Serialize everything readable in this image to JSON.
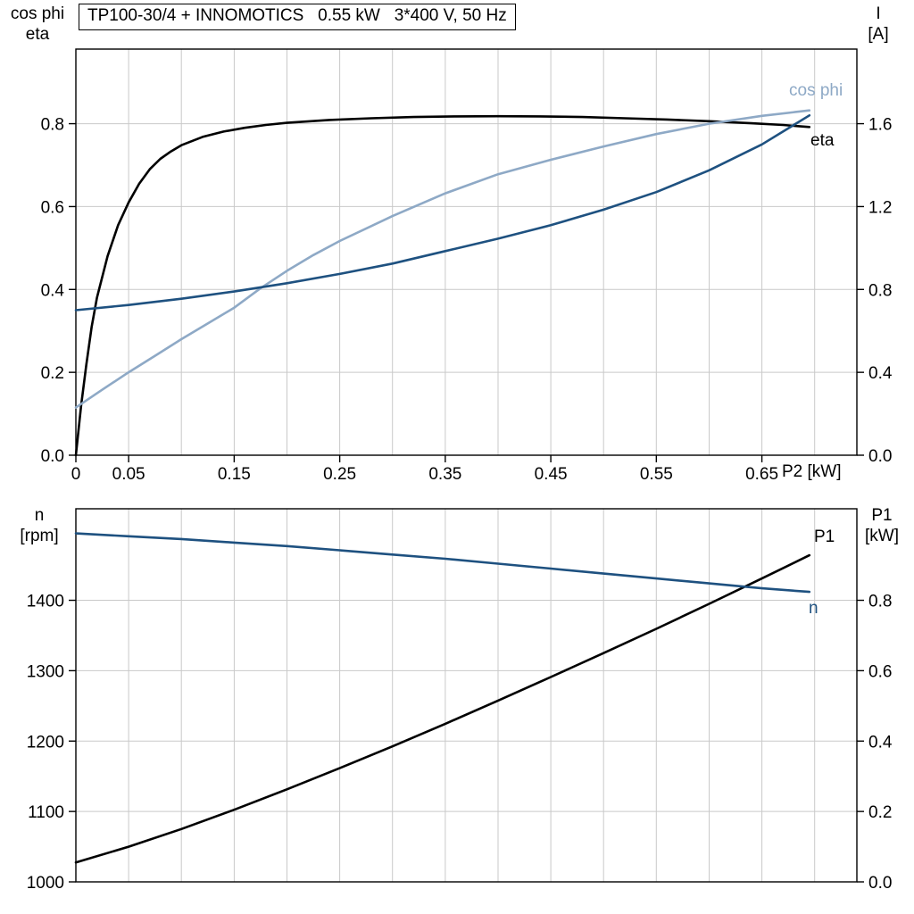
{
  "colors": {
    "black": "#000000",
    "dark_blue": "#1e5180",
    "light_blue": "#8ea9c6",
    "grid": "#c9c9c9",
    "axis": "#000000",
    "background": "#ffffff"
  },
  "chart_data": [
    {
      "type": "line",
      "title": "TP100-30/4 + INNOMOTICS   0.55 kW   3*400 V, 50 Hz",
      "x_axis": {
        "label": "P2 [kW]",
        "min": 0,
        "max": 0.74,
        "grid_step": 0.05,
        "ticks": [
          {
            "v": 0,
            "t": "0"
          },
          {
            "v": 0.05,
            "t": "0.05"
          },
          {
            "v": 0.15,
            "t": "0.15"
          },
          {
            "v": 0.25,
            "t": "0.25"
          },
          {
            "v": 0.35,
            "t": "0.35"
          },
          {
            "v": 0.45,
            "t": "0.45"
          },
          {
            "v": 0.55,
            "t": "0.55"
          },
          {
            "v": 0.65,
            "t": "0.65"
          }
        ]
      },
      "left_axis": {
        "title_lines": [
          "cos phi",
          "eta"
        ],
        "min": 0,
        "max": 0.98,
        "ticks": [
          {
            "v": 0.0,
            "t": "0.0"
          },
          {
            "v": 0.2,
            "t": "0.2"
          },
          {
            "v": 0.4,
            "t": "0.4"
          },
          {
            "v": 0.6,
            "t": "0.6"
          },
          {
            "v": 0.8,
            "t": "0.8"
          }
        ]
      },
      "right_axis": {
        "title_lines": [
          "I",
          "[A]"
        ],
        "min": 0,
        "max": 1.96,
        "ticks": [
          {
            "v": 0.0,
            "t": "0.0"
          },
          {
            "v": 0.4,
            "t": "0.4"
          },
          {
            "v": 0.8,
            "t": "0.8"
          },
          {
            "v": 1.2,
            "t": "1.2"
          },
          {
            "v": 1.6,
            "t": "1.6"
          }
        ]
      },
      "series": [
        {
          "name": "eta",
          "label": "eta",
          "axis": "left",
          "color_key": "black",
          "points": [
            [
              0,
              0
            ],
            [
              0.005,
              0.12
            ],
            [
              0.01,
              0.22
            ],
            [
              0.015,
              0.31
            ],
            [
              0.02,
              0.38
            ],
            [
              0.03,
              0.48
            ],
            [
              0.04,
              0.555
            ],
            [
              0.05,
              0.61
            ],
            [
              0.06,
              0.655
            ],
            [
              0.07,
              0.69
            ],
            [
              0.08,
              0.715
            ],
            [
              0.09,
              0.733
            ],
            [
              0.1,
              0.748
            ],
            [
              0.12,
              0.768
            ],
            [
              0.14,
              0.781
            ],
            [
              0.16,
              0.79
            ],
            [
              0.18,
              0.797
            ],
            [
              0.2,
              0.802
            ],
            [
              0.24,
              0.809
            ],
            [
              0.28,
              0.813
            ],
            [
              0.32,
              0.816
            ],
            [
              0.36,
              0.8175
            ],
            [
              0.4,
              0.818
            ],
            [
              0.44,
              0.8175
            ],
            [
              0.48,
              0.816
            ],
            [
              0.52,
              0.813
            ],
            [
              0.56,
              0.81
            ],
            [
              0.6,
              0.806
            ],
            [
              0.64,
              0.801
            ],
            [
              0.67,
              0.797
            ],
            [
              0.695,
              0.792
            ]
          ]
        },
        {
          "name": "cos phi",
          "label": "cos phi",
          "axis": "left",
          "color_key": "light_blue",
          "points": [
            [
              0,
              0.115
            ],
            [
              0.025,
              0.158
            ],
            [
              0.05,
              0.2
            ],
            [
              0.075,
              0.24
            ],
            [
              0.1,
              0.28
            ],
            [
              0.125,
              0.318
            ],
            [
              0.15,
              0.356
            ],
            [
              0.175,
              0.403
            ],
            [
              0.2,
              0.445
            ],
            [
              0.225,
              0.483
            ],
            [
              0.25,
              0.517
            ],
            [
              0.3,
              0.577
            ],
            [
              0.35,
              0.632
            ],
            [
              0.4,
              0.678
            ],
            [
              0.45,
              0.713
            ],
            [
              0.5,
              0.745
            ],
            [
              0.55,
              0.775
            ],
            [
              0.6,
              0.8
            ],
            [
              0.65,
              0.819
            ],
            [
              0.695,
              0.832
            ]
          ]
        },
        {
          "name": "I",
          "label": "I",
          "axis": "right",
          "color_key": "dark_blue",
          "points": [
            [
              0,
              0.7
            ],
            [
              0.05,
              0.725
            ],
            [
              0.1,
              0.755
            ],
            [
              0.15,
              0.79
            ],
            [
              0.2,
              0.83
            ],
            [
              0.25,
              0.875
            ],
            [
              0.3,
              0.925
            ],
            [
              0.35,
              0.985
            ],
            [
              0.4,
              1.045
            ],
            [
              0.45,
              1.11
            ],
            [
              0.5,
              1.185
            ],
            [
              0.55,
              1.27
            ],
            [
              0.6,
              1.375
            ],
            [
              0.65,
              1.5
            ],
            [
              0.695,
              1.64
            ]
          ]
        }
      ]
    },
    {
      "type": "line",
      "title": "",
      "x_axis": {
        "label": "",
        "min": 0,
        "max": 0.74,
        "grid_step": 0.05,
        "ticks": []
      },
      "left_axis": {
        "title_lines": [
          "n",
          "[rpm]"
        ],
        "min": 1000,
        "max": 1530,
        "ticks": [
          {
            "v": 1000,
            "t": "1000"
          },
          {
            "v": 1100,
            "t": "1100"
          },
          {
            "v": 1200,
            "t": "1200"
          },
          {
            "v": 1300,
            "t": "1300"
          },
          {
            "v": 1400,
            "t": "1400"
          }
        ]
      },
      "right_axis": {
        "title_lines": [
          "P1",
          "[kW]"
        ],
        "min": 0,
        "max": 1.06,
        "ticks": [
          {
            "v": 0.0,
            "t": "0.0"
          },
          {
            "v": 0.2,
            "t": "0.2"
          },
          {
            "v": 0.4,
            "t": "0.4"
          },
          {
            "v": 0.6,
            "t": "0.6"
          },
          {
            "v": 0.8,
            "t": "0.8"
          }
        ]
      },
      "series": [
        {
          "name": "P1",
          "label": "P1",
          "axis": "right",
          "color_key": "black",
          "points": [
            [
              0,
              0.055
            ],
            [
              0.05,
              0.1
            ],
            [
              0.1,
              0.15
            ],
            [
              0.15,
              0.205
            ],
            [
              0.2,
              0.263
            ],
            [
              0.25,
              0.323
            ],
            [
              0.3,
              0.385
            ],
            [
              0.35,
              0.449
            ],
            [
              0.4,
              0.515
            ],
            [
              0.45,
              0.582
            ],
            [
              0.5,
              0.65
            ],
            [
              0.55,
              0.719
            ],
            [
              0.6,
              0.79
            ],
            [
              0.65,
              0.862
            ],
            [
              0.695,
              0.928
            ]
          ]
        },
        {
          "name": "n",
          "label": "n",
          "axis": "left",
          "color_key": "dark_blue",
          "points": [
            [
              0,
              1495
            ],
            [
              0.05,
              1491
            ],
            [
              0.1,
              1487
            ],
            [
              0.15,
              1482
            ],
            [
              0.2,
              1477
            ],
            [
              0.25,
              1471
            ],
            [
              0.3,
              1465
            ],
            [
              0.35,
              1459
            ],
            [
              0.4,
              1452
            ],
            [
              0.45,
              1445
            ],
            [
              0.5,
              1438
            ],
            [
              0.55,
              1431
            ],
            [
              0.6,
              1424
            ],
            [
              0.65,
              1417
            ],
            [
              0.695,
              1412
            ]
          ]
        }
      ]
    }
  ]
}
